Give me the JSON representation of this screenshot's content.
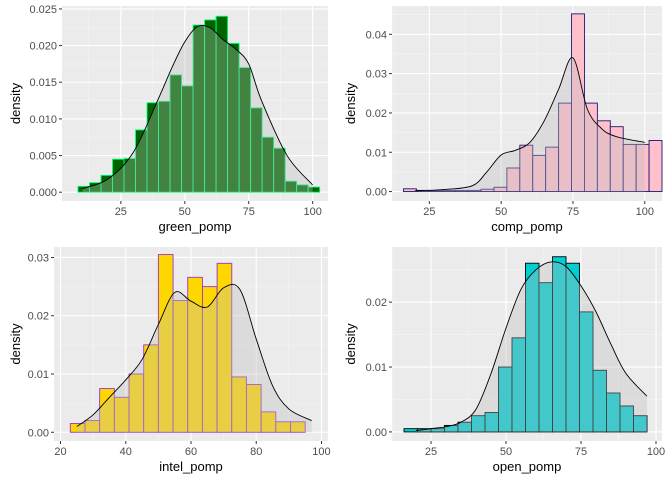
{
  "chart_data": [
    {
      "type": "bar",
      "xlabel": "green_pomp",
      "ylabel": "density",
      "xlim": [
        2,
        106
      ],
      "ylim": [
        -0.0012,
        0.0254
      ],
      "xticks": [
        25,
        50,
        75,
        100
      ],
      "yticks": [
        0.0,
        0.005,
        0.01,
        0.015,
        0.02,
        0.025
      ],
      "ytick_labels": [
        "0.000",
        "0.005",
        "0.010",
        "0.015",
        "0.020",
        "0.025"
      ],
      "bin_width": 4.5,
      "bin_start": 8.25,
      "values": [
        0.0008,
        0.0013,
        0.0023,
        0.0045,
        0.0046,
        0.0085,
        0.0122,
        0.0124,
        0.016,
        0.0145,
        0.0228,
        0.0235,
        0.024,
        0.0203,
        0.017,
        0.0115,
        0.0075,
        0.006,
        0.0015,
        0.001,
        0.0007
      ],
      "density_x": [
        10,
        20,
        30,
        40,
        45,
        50,
        55,
        60,
        65,
        70,
        75,
        80,
        90,
        100
      ],
      "density_y": [
        0.0005,
        0.0018,
        0.0055,
        0.013,
        0.017,
        0.0205,
        0.0226,
        0.0224,
        0.0208,
        0.0195,
        0.0175,
        0.0125,
        0.005,
        0.001
      ],
      "colors": {
        "fill": "#006400",
        "outline": "#00ff7f"
      }
    },
    {
      "type": "bar",
      "xlabel": "comp_pomp",
      "ylabel": "density",
      "xlim": [
        12,
        106
      ],
      "ylim": [
        -0.0024,
        0.0472
      ],
      "xticks": [
        25,
        50,
        75,
        100
      ],
      "yticks": [
        0.0,
        0.01,
        0.02,
        0.03,
        0.04
      ],
      "ytick_labels": [
        "0.00",
        "0.01",
        "0.02",
        "0.03",
        "0.04"
      ],
      "bin_width": 4.5,
      "bin_start": 16,
      "values": [
        0.0007,
        0.0003,
        0.0003,
        0.0003,
        0.0003,
        0.0003,
        0.0006,
        0.0011,
        0.006,
        0.0118,
        0.0092,
        0.0113,
        0.0225,
        0.0452,
        0.0225,
        0.018,
        0.0165,
        0.012,
        0.012,
        0.013
      ],
      "density_x": [
        20,
        30,
        40,
        45,
        50,
        55,
        60,
        65,
        70,
        75,
        80,
        85,
        90,
        100
      ],
      "density_y": [
        0.0002,
        0.0005,
        0.0015,
        0.005,
        0.0093,
        0.0105,
        0.0125,
        0.018,
        0.026,
        0.034,
        0.021,
        0.016,
        0.014,
        0.0125
      ],
      "colors": {
        "fill": "#ffc0cb",
        "outline": "#191970"
      }
    },
    {
      "type": "bar",
      "xlabel": "intel_pomp",
      "ylabel": "density",
      "xlim": [
        18,
        102
      ],
      "ylim": [
        -0.0015,
        0.0318
      ],
      "xticks": [
        20,
        40,
        60,
        80,
        100
      ],
      "yticks": [
        0.0,
        0.01,
        0.02,
        0.03
      ],
      "ytick_labels": [
        "0.00",
        "0.01",
        "0.02",
        "0.03"
      ],
      "bin_width": 4.5,
      "bin_start": 23,
      "values": [
        0.0015,
        0.002,
        0.0075,
        0.006,
        0.01,
        0.015,
        0.0305,
        0.0226,
        0.0266,
        0.025,
        0.029,
        0.0095,
        0.0082,
        0.0035,
        0.0018,
        0.0018
      ],
      "density_x": [
        25,
        30,
        35,
        40,
        45,
        50,
        55,
        60,
        65,
        70,
        75,
        80,
        85,
        90,
        97
      ],
      "density_y": [
        0.001,
        0.003,
        0.006,
        0.009,
        0.0125,
        0.0185,
        0.024,
        0.0225,
        0.0215,
        0.0248,
        0.0245,
        0.016,
        0.008,
        0.004,
        0.002
      ],
      "colors": {
        "fill": "#ffd700",
        "outline": "#9932cc"
      }
    },
    {
      "type": "bar",
      "xlabel": "open_pomp",
      "ylabel": "density",
      "xlim": [
        12,
        102
      ],
      "ylim": [
        -0.0014,
        0.0285
      ],
      "xticks": [
        25,
        50,
        75,
        100
      ],
      "yticks": [
        0.0,
        0.01,
        0.02
      ],
      "ytick_labels": [
        "0.00",
        "0.01",
        "0.02"
      ],
      "bin_width": 4.5,
      "bin_start": 16,
      "values": [
        0.0005,
        0.0005,
        0.0005,
        0.001,
        0.0015,
        0.0025,
        0.003,
        0.01,
        0.0145,
        0.026,
        0.023,
        0.027,
        0.026,
        0.0185,
        0.0095,
        0.006,
        0.004,
        0.0025
      ],
      "density_x": [
        20,
        25,
        30,
        35,
        40,
        45,
        50,
        55,
        60,
        65,
        70,
        75,
        80,
        85,
        90,
        97
      ],
      "density_y": [
        0.0002,
        0.0005,
        0.0008,
        0.0015,
        0.0035,
        0.009,
        0.016,
        0.022,
        0.025,
        0.0262,
        0.0255,
        0.0225,
        0.0185,
        0.0135,
        0.009,
        0.0055
      ],
      "colors": {
        "fill": "#00ced1",
        "outline": "#000000"
      }
    }
  ]
}
